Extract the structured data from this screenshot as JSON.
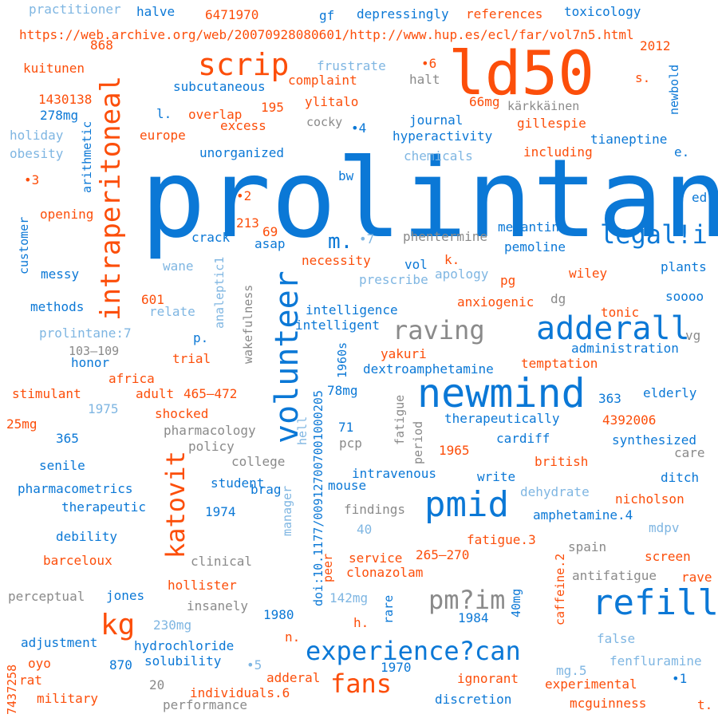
{
  "colors": {
    "orange": "#fc4e0a",
    "blue": "#0b78d6",
    "light_blue": "#7fb6e2",
    "gray": "#8a8a8a"
  },
  "words": [
    {
      "text": "prolintane",
      "color": "blue"
    },
    {
      "text": "ld50",
      "color": "orange"
    },
    {
      "text": "newmind",
      "color": "blue"
    },
    {
      "text": "pmid",
      "color": "blue"
    },
    {
      "text": "adderall",
      "color": "blue"
    },
    {
      "text": "refill",
      "color": "blue"
    },
    {
      "text": "volunteer",
      "color": "blue"
    },
    {
      "text": "intraperitoneal",
      "color": "orange"
    },
    {
      "text": "scrip",
      "color": "orange"
    },
    {
      "text": "legal!i",
      "color": "blue"
    },
    {
      "text": "raving",
      "color": "gray"
    },
    {
      "text": "katovit",
      "color": "orange"
    },
    {
      "text": "kg",
      "color": "orange"
    },
    {
      "text": "pm?im",
      "color": "gray"
    },
    {
      "text": "experience?can",
      "color": "blue"
    },
    {
      "text": "fans",
      "color": "orange"
    },
    {
      "text": "m.",
      "color": "blue"
    },
    {
      "text": "https://web.archive.org/web/20070928080601/http://www.hup.es/ecl/far/vol7n5.html",
      "color": "orange"
    },
    {
      "text": "doi:10.1177/009127007001000205",
      "color": "blue"
    },
    {
      "text": "practitioner",
      "color": "light_blue"
    },
    {
      "text": "halve",
      "color": "blue"
    },
    {
      "text": "6471970",
      "color": "orange"
    },
    {
      "text": "gf",
      "color": "blue"
    },
    {
      "text": "depressingly",
      "color": "blue"
    },
    {
      "text": "references",
      "color": "orange"
    },
    {
      "text": "toxicology",
      "color": "blue"
    },
    {
      "text": "868",
      "color": "orange"
    },
    {
      "text": "2012",
      "color": "orange"
    },
    {
      "text": "newbold",
      "color": "blue"
    },
    {
      "text": "kuitunen",
      "color": "orange"
    },
    {
      "text": "frustrate",
      "color": "light_blue"
    },
    {
      "text": "•6",
      "color": "orange"
    },
    {
      "text": "complaint",
      "color": "orange"
    },
    {
      "text": "halt",
      "color": "gray"
    },
    {
      "text": "s.",
      "color": "orange"
    },
    {
      "text": "subcutaneous",
      "color": "blue"
    },
    {
      "text": "1430138",
      "color": "orange"
    },
    {
      "text": "ylitalo",
      "color": "orange"
    },
    {
      "text": "66mg",
      "color": "orange"
    },
    {
      "text": "kärkkäinen",
      "color": "gray"
    },
    {
      "text": "278mg",
      "color": "blue"
    },
    {
      "text": "l.",
      "color": "blue"
    },
    {
      "text": "overlap",
      "color": "orange"
    },
    {
      "text": "195",
      "color": "orange"
    },
    {
      "text": "journal",
      "color": "blue"
    },
    {
      "text": "gillespie",
      "color": "orange"
    },
    {
      "text": "arithmetic",
      "color": "blue"
    },
    {
      "text": "excess",
      "color": "orange"
    },
    {
      "text": "cocky",
      "color": "gray"
    },
    {
      "text": "•4",
      "color": "blue"
    },
    {
      "text": "hyperactivity",
      "color": "blue"
    },
    {
      "text": "tianeptine",
      "color": "blue"
    },
    {
      "text": "holiday",
      "color": "light_blue"
    },
    {
      "text": "europe",
      "color": "orange"
    },
    {
      "text": "obesity",
      "color": "light_blue"
    },
    {
      "text": "unorganized",
      "color": "blue"
    },
    {
      "text": "chemicals",
      "color": "light_blue"
    },
    {
      "text": "including",
      "color": "orange"
    },
    {
      "text": "e.",
      "color": "blue"
    },
    {
      "text": "•3",
      "color": "orange"
    },
    {
      "text": "bw",
      "color": "blue"
    },
    {
      "text": "•2",
      "color": "orange"
    },
    {
      "text": "ed",
      "color": "blue"
    },
    {
      "text": "opening",
      "color": "orange"
    },
    {
      "text": "customer",
      "color": "blue"
    },
    {
      "text": "213",
      "color": "orange"
    },
    {
      "text": "69",
      "color": "orange"
    },
    {
      "text": "crack",
      "color": "blue"
    },
    {
      "text": "asap",
      "color": "blue"
    },
    {
      "text": "•7",
      "color": "light_blue"
    },
    {
      "text": "phentermine",
      "color": "gray"
    },
    {
      "text": "memantine",
      "color": "blue"
    },
    {
      "text": "pemoline",
      "color": "blue"
    },
    {
      "text": "wane",
      "color": "light_blue"
    },
    {
      "text": "necessity",
      "color": "orange"
    },
    {
      "text": "vol",
      "color": "blue"
    },
    {
      "text": "k.",
      "color": "orange"
    },
    {
      "text": "plants",
      "color": "blue"
    },
    {
      "text": "messy",
      "color": "blue"
    },
    {
      "text": "wakefulness",
      "color": "gray"
    },
    {
      "text": "analeptic1",
      "color": "light_blue"
    },
    {
      "text": "prescribe",
      "color": "light_blue"
    },
    {
      "text": "apology",
      "color": "light_blue"
    },
    {
      "text": "pg",
      "color": "orange"
    },
    {
      "text": "wiley",
      "color": "orange"
    },
    {
      "text": "601",
      "color": "orange"
    },
    {
      "text": "dg",
      "color": "gray"
    },
    {
      "text": "anxiogenic",
      "color": "orange"
    },
    {
      "text": "soooo",
      "color": "blue"
    },
    {
      "text": "methods",
      "color": "blue"
    },
    {
      "text": "relate",
      "color": "light_blue"
    },
    {
      "text": "intelligence",
      "color": "blue"
    },
    {
      "text": "tonic",
      "color": "orange"
    },
    {
      "text": "intelligent",
      "color": "blue"
    },
    {
      "text": "p.",
      "color": "blue"
    },
    {
      "text": "prolintane:7",
      "color": "light_blue"
    },
    {
      "text": "vg",
      "color": "gray"
    },
    {
      "text": "administration",
      "color": "blue"
    },
    {
      "text": "103–109",
      "color": "gray"
    },
    {
      "text": "trial",
      "color": "orange"
    },
    {
      "text": "honor",
      "color": "blue"
    },
    {
      "text": "1960s",
      "color": "blue"
    },
    {
      "text": "yakuri",
      "color": "orange"
    },
    {
      "text": "temptation",
      "color": "orange"
    },
    {
      "text": "dextroamphetamine",
      "color": "blue"
    },
    {
      "text": "africa",
      "color": "orange"
    },
    {
      "text": "stimulant",
      "color": "orange"
    },
    {
      "text": "adult",
      "color": "orange"
    },
    {
      "text": "465–472",
      "color": "orange"
    },
    {
      "text": "78mg",
      "color": "blue"
    },
    {
      "text": "fatigue",
      "color": "gray"
    },
    {
      "text": "363",
      "color": "blue"
    },
    {
      "text": "elderly",
      "color": "blue"
    },
    {
      "text": "1975",
      "color": "light_blue"
    },
    {
      "text": "shocked",
      "color": "orange"
    },
    {
      "text": "25mg",
      "color": "orange"
    },
    {
      "text": "therapeutically",
      "color": "blue"
    },
    {
      "text": "4392006",
      "color": "orange"
    },
    {
      "text": "pharmacology",
      "color": "gray"
    },
    {
      "text": "71",
      "color": "blue"
    },
    {
      "text": "period",
      "color": "gray"
    },
    {
      "text": "cardiff",
      "color": "blue"
    },
    {
      "text": "365",
      "color": "blue"
    },
    {
      "text": "policy",
      "color": "gray"
    },
    {
      "text": "hell",
      "color": "light_blue"
    },
    {
      "text": "pcp",
      "color": "gray"
    },
    {
      "text": "synthesized",
      "color": "blue"
    },
    {
      "text": "1965",
      "color": "orange"
    },
    {
      "text": "care",
      "color": "gray"
    },
    {
      "text": "college",
      "color": "gray"
    },
    {
      "text": "british",
      "color": "orange"
    },
    {
      "text": "senile",
      "color": "blue"
    },
    {
      "text": "intravenous",
      "color": "blue"
    },
    {
      "text": "write",
      "color": "blue"
    },
    {
      "text": "student",
      "color": "blue"
    },
    {
      "text": "brag",
      "color": "blue"
    },
    {
      "text": "ditch",
      "color": "blue"
    },
    {
      "text": "pharmacometrics",
      "color": "blue"
    },
    {
      "text": "mouse",
      "color": "blue"
    },
    {
      "text": "dehydrate",
      "color": "light_blue"
    },
    {
      "text": "nicholson",
      "color": "orange"
    },
    {
      "text": "therapeutic",
      "color": "blue"
    },
    {
      "text": "1974",
      "color": "blue"
    },
    {
      "text": "findings",
      "color": "gray"
    },
    {
      "text": "amphetamine.4",
      "color": "blue"
    },
    {
      "text": "manager",
      "color": "light_blue"
    },
    {
      "text": "40",
      "color": "light_blue"
    },
    {
      "text": "mdpv",
      "color": "light_blue"
    },
    {
      "text": "debility",
      "color": "blue"
    },
    {
      "text": "fatigue.3",
      "color": "orange"
    },
    {
      "text": "caffeine.2",
      "color": "orange"
    },
    {
      "text": "spain",
      "color": "gray"
    },
    {
      "text": "barceloux",
      "color": "orange"
    },
    {
      "text": "clinical",
      "color": "gray"
    },
    {
      "text": "service",
      "color": "orange"
    },
    {
      "text": "265–270",
      "color": "orange"
    },
    {
      "text": "screen",
      "color": "orange"
    },
    {
      "text": "peer",
      "color": "orange"
    },
    {
      "text": "clonazolam",
      "color": "orange"
    },
    {
      "text": "antifatigue",
      "color": "gray"
    },
    {
      "text": "rave",
      "color": "orange"
    },
    {
      "text": "hollister",
      "color": "orange"
    },
    {
      "text": "perceptual",
      "color": "gray"
    },
    {
      "text": "jones",
      "color": "blue"
    },
    {
      "text": "insanely",
      "color": "gray"
    },
    {
      "text": "142mg",
      "color": "light_blue"
    },
    {
      "text": "rare",
      "color": "blue"
    },
    {
      "text": "40mg",
      "color": "blue"
    },
    {
      "text": "1980",
      "color": "blue"
    },
    {
      "text": "230mg",
      "color": "light_blue"
    },
    {
      "text": "h.",
      "color": "orange"
    },
    {
      "text": "1984",
      "color": "blue"
    },
    {
      "text": "adjustment",
      "color": "blue"
    },
    {
      "text": "hydrochloride",
      "color": "blue"
    },
    {
      "text": "n.",
      "color": "orange"
    },
    {
      "text": "false",
      "color": "light_blue"
    },
    {
      "text": "7437258",
      "color": "orange"
    },
    {
      "text": "oyo",
      "color": "orange"
    },
    {
      "text": "870",
      "color": "blue"
    },
    {
      "text": "solubility",
      "color": "blue"
    },
    {
      "text": "•5",
      "color": "light_blue"
    },
    {
      "text": "1970",
      "color": "blue"
    },
    {
      "text": "mg.5",
      "color": "light_blue"
    },
    {
      "text": "fenfluramine",
      "color": "light_blue"
    },
    {
      "text": "rat",
      "color": "orange"
    },
    {
      "text": "adderal",
      "color": "orange"
    },
    {
      "text": "ignorant",
      "color": "orange"
    },
    {
      "text": "•1",
      "color": "blue"
    },
    {
      "text": "20",
      "color": "gray"
    },
    {
      "text": "individuals.6",
      "color": "orange"
    },
    {
      "text": "experimental",
      "color": "orange"
    },
    {
      "text": "military",
      "color": "orange"
    },
    {
      "text": "discretion",
      "color": "blue"
    },
    {
      "text": "performance",
      "color": "gray"
    },
    {
      "text": "mcguinness",
      "color": "orange"
    },
    {
      "text": "t.",
      "color": "orange"
    }
  ]
}
